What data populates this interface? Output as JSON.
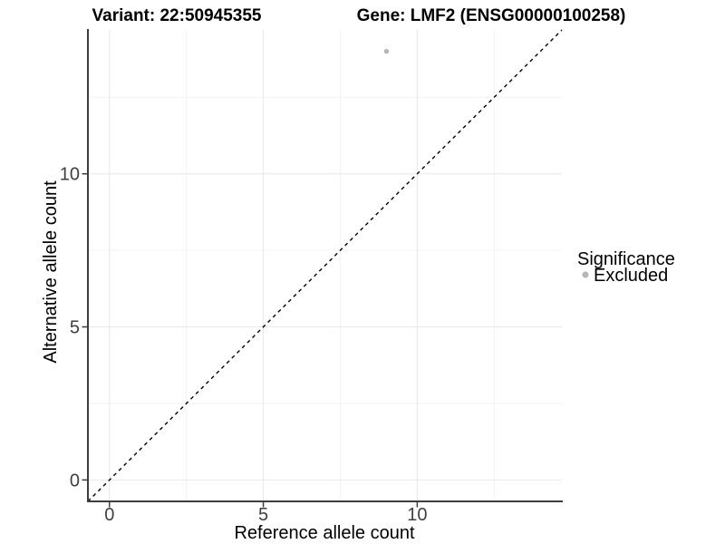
{
  "chart_data": {
    "type": "scatter",
    "title_left": "Variant: 22:50945355",
    "title_right": "Gene: LMF2 (ENSG00000100258)",
    "xlabel": "Reference allele count",
    "ylabel": "Alternative allele count",
    "xlim": [
      -0.7,
      14.7
    ],
    "ylim": [
      -0.7,
      14.7
    ],
    "x_major_ticks": [
      0,
      5,
      10
    ],
    "y_major_ticks": [
      0,
      5,
      10
    ],
    "x_minor_ticks": [
      2.5,
      7.5,
      12.5
    ],
    "y_minor_ticks": [
      2.5,
      7.5,
      12.5
    ],
    "grid": true,
    "identity_line": {
      "style": "dashed",
      "color": "#000000",
      "from": -0.7,
      "to": 14.7
    },
    "series": [
      {
        "name": "Excluded",
        "color": "#b5b5b5",
        "points": [
          {
            "x": 9,
            "y": 14
          }
        ]
      }
    ],
    "legend": {
      "title": "Significance",
      "position": "right",
      "items": [
        {
          "label": "Excluded",
          "color": "#b5b5b5"
        }
      ]
    }
  },
  "colors": {
    "background": "#ffffff",
    "grid_major": "#e8e8e8",
    "grid_minor": "#f3f3f3",
    "axis_line": "#3d3d3d",
    "tick_text": "#404040",
    "title_text": "#000000"
  }
}
